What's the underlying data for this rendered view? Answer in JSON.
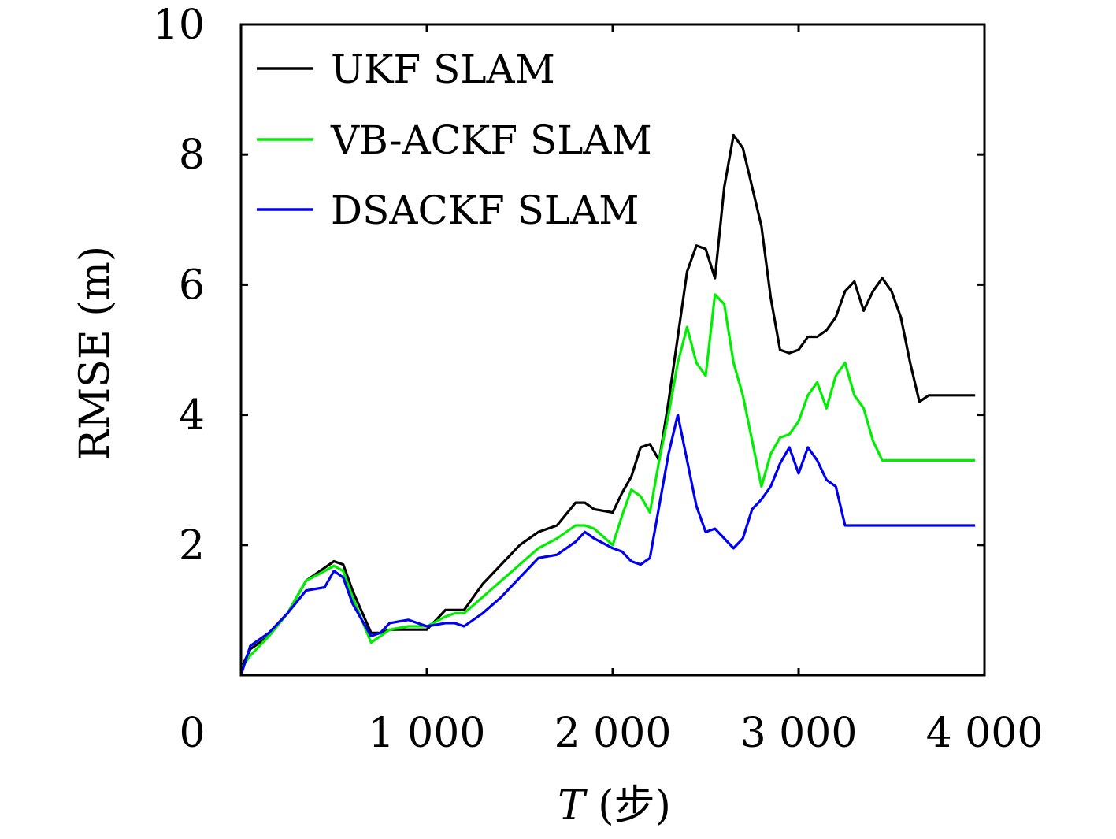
{
  "chart_data": {
    "type": "line",
    "xlabel": "T (步)",
    "xlabel_italic_part": "T",
    "xlabel_rest": " (步)",
    "ylabel": "RMSE (m)",
    "xlim": [
      0,
      4000
    ],
    "ylim": [
      0,
      10
    ],
    "x_ticks": [
      0,
      1000,
      2000,
      3000,
      4000
    ],
    "x_tick_labels": [
      "0",
      "1 000",
      "2 000",
      "3 000",
      "4 000"
    ],
    "y_ticks": [
      2,
      4,
      6,
      8,
      10
    ],
    "y_tick_labels": [
      "2",
      "4",
      "6",
      "8",
      "10"
    ],
    "grid": false,
    "legend_position": "top-left",
    "series": [
      {
        "name": "UKF SLAM",
        "color": "#000000",
        "x": [
          0,
          50,
          150,
          250,
          350,
          450,
          500,
          550,
          600,
          700,
          750,
          800,
          900,
          1000,
          1100,
          1150,
          1200,
          1300,
          1400,
          1500,
          1600,
          1700,
          1800,
          1850,
          1900,
          2000,
          2050,
          2100,
          2150,
          2200,
          2250,
          2300,
          2350,
          2400,
          2450,
          2500,
          2550,
          2600,
          2650,
          2700,
          2750,
          2800,
          2850,
          2900,
          2950,
          3000,
          3050,
          3100,
          3150,
          3200,
          3250,
          3300,
          3350,
          3400,
          3450,
          3500,
          3550,
          3600,
          3650,
          3700,
          3750,
          3800,
          3850,
          3900,
          3950
        ],
        "y": [
          0.1,
          0.4,
          0.6,
          0.95,
          1.45,
          1.65,
          1.75,
          1.7,
          1.3,
          0.65,
          0.65,
          0.7,
          0.7,
          0.7,
          1.0,
          1.0,
          1.0,
          1.4,
          1.7,
          2.0,
          2.2,
          2.3,
          2.65,
          2.65,
          2.55,
          2.5,
          2.8,
          3.05,
          3.5,
          3.55,
          3.3,
          4.2,
          5.2,
          6.2,
          6.6,
          6.55,
          6.1,
          7.5,
          8.3,
          8.1,
          7.5,
          6.9,
          5.8,
          5.0,
          4.95,
          5.0,
          5.2,
          5.2,
          5.3,
          5.5,
          5.9,
          6.05,
          5.6,
          5.9,
          6.1,
          5.9,
          5.5,
          4.8,
          4.2,
          4.3,
          4.3,
          4.3,
          4.3,
          4.3,
          4.3
        ]
      },
      {
        "name": "VB-ACKF SLAM",
        "color": "#00ee00",
        "x": [
          0,
          50,
          150,
          250,
          350,
          450,
          500,
          550,
          600,
          700,
          750,
          800,
          900,
          1000,
          1100,
          1150,
          1200,
          1300,
          1400,
          1500,
          1600,
          1700,
          1800,
          1850,
          1900,
          2000,
          2050,
          2100,
          2150,
          2200,
          2250,
          2300,
          2350,
          2400,
          2450,
          2500,
          2550,
          2600,
          2650,
          2700,
          2750,
          2800,
          2850,
          2900,
          2950,
          3000,
          3050,
          3100,
          3150,
          3200,
          3250,
          3300,
          3350,
          3400,
          3450,
          3500,
          3550,
          3600,
          3650,
          3700,
          3750,
          3800,
          3850,
          3900,
          3950
        ],
        "y": [
          0.1,
          0.3,
          0.6,
          0.95,
          1.45,
          1.6,
          1.68,
          1.6,
          1.2,
          0.5,
          0.6,
          0.7,
          0.75,
          0.75,
          0.9,
          0.95,
          0.95,
          1.2,
          1.45,
          1.7,
          1.95,
          2.1,
          2.3,
          2.3,
          2.25,
          2.0,
          2.45,
          2.85,
          2.75,
          2.5,
          3.3,
          4.0,
          4.8,
          5.35,
          4.8,
          4.6,
          5.85,
          5.7,
          4.8,
          4.3,
          3.6,
          2.9,
          3.4,
          3.65,
          3.7,
          3.9,
          4.3,
          4.5,
          4.1,
          4.6,
          4.8,
          4.3,
          4.1,
          3.6,
          3.3,
          3.3,
          3.3,
          3.3,
          3.3,
          3.3,
          3.3,
          3.3,
          3.3,
          3.3,
          3.3
        ]
      },
      {
        "name": "DSACKF SLAM",
        "color": "#0000ee",
        "x": [
          0,
          50,
          150,
          250,
          350,
          450,
          500,
          550,
          600,
          700,
          750,
          800,
          900,
          1000,
          1100,
          1150,
          1200,
          1300,
          1400,
          1500,
          1600,
          1700,
          1800,
          1850,
          1900,
          2000,
          2050,
          2100,
          2150,
          2200,
          2250,
          2300,
          2350,
          2400,
          2450,
          2500,
          2550,
          2600,
          2650,
          2700,
          2750,
          2800,
          2850,
          2900,
          2950,
          3000,
          3050,
          3100,
          3150,
          3200,
          3250,
          3300,
          3350,
          3400,
          3450,
          3500,
          3550,
          3600,
          3650,
          3700,
          3750,
          3800,
          3850,
          3900,
          3950
        ],
        "y": [
          0.0,
          0.45,
          0.65,
          0.95,
          1.3,
          1.35,
          1.6,
          1.5,
          1.1,
          0.6,
          0.65,
          0.8,
          0.85,
          0.75,
          0.8,
          0.8,
          0.75,
          0.95,
          1.2,
          1.5,
          1.8,
          1.85,
          2.05,
          2.2,
          2.1,
          1.95,
          1.9,
          1.75,
          1.7,
          1.8,
          2.6,
          3.4,
          4.0,
          3.3,
          2.6,
          2.2,
          2.25,
          2.1,
          1.95,
          2.1,
          2.55,
          2.7,
          2.9,
          3.25,
          3.5,
          3.1,
          3.5,
          3.3,
          3.0,
          2.9,
          2.3,
          2.3,
          2.3,
          2.3,
          2.3,
          2.3,
          2.3,
          2.3,
          2.3,
          2.3,
          2.3,
          2.3,
          2.3,
          2.3,
          2.3
        ]
      }
    ]
  }
}
